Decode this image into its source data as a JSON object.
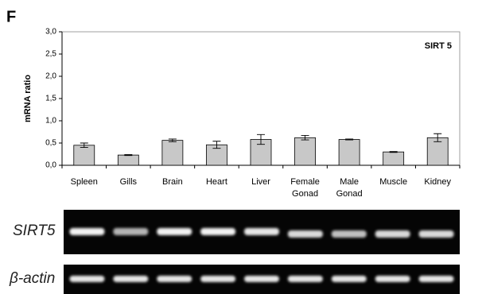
{
  "chart_data": {
    "type": "bar",
    "panel_label": "F",
    "annotation": "SIRT 5",
    "ylabel": "mRNA ratio",
    "categories": [
      "Spleen",
      "Gills",
      "Brain",
      "Heart",
      "Liver",
      "Female\nGonad",
      "Male\nGonad",
      "Muscle",
      "Kidney"
    ],
    "values": [
      0.45,
      0.23,
      0.56,
      0.46,
      0.58,
      0.62,
      0.58,
      0.3,
      0.62
    ],
    "errors": [
      0.05,
      0.01,
      0.03,
      0.08,
      0.11,
      0.05,
      0.01,
      0.01,
      0.09
    ],
    "color": "#c8c8c8",
    "ylim": [
      0,
      3
    ],
    "yticks": [
      {
        "value": 0,
        "label": "0,0"
      },
      {
        "value": 0.5,
        "label": "0,5"
      },
      {
        "value": 1,
        "label": "1,0"
      },
      {
        "value": 1.5,
        "label": "1,5"
      },
      {
        "value": 2,
        "label": "2,0"
      },
      {
        "value": 2.5,
        "label": "2,5"
      },
      {
        "value": 3,
        "label": "3,0"
      }
    ],
    "grid": false
  },
  "gel_labels": [
    "SIRT5",
    "β-actin"
  ]
}
